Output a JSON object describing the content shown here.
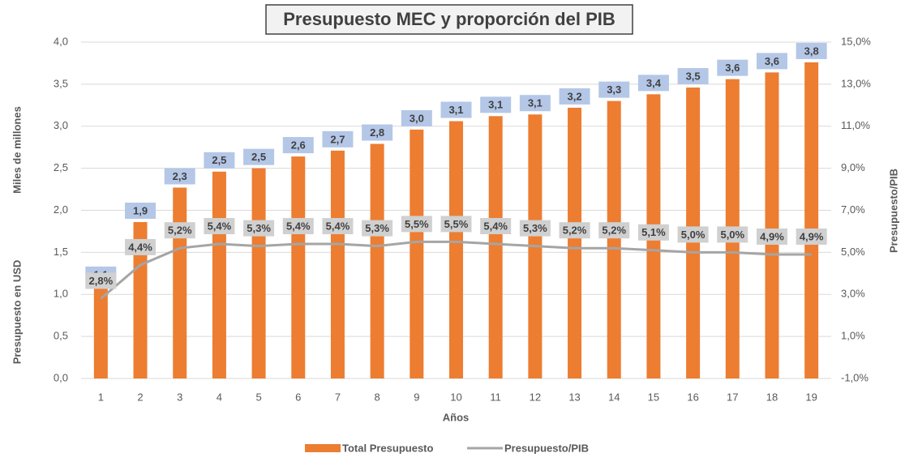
{
  "chart_data": {
    "type": "bar_line",
    "title": "Presupuesto MEC y proporción del PIB",
    "y_label_lines": [
      "Miles de millones",
      "Presupuesto en USD"
    ],
    "y2_label": "Presupuesto/PIB",
    "x_label": "Años",
    "categories": [
      "1",
      "2",
      "3",
      "4",
      "5",
      "6",
      "7",
      "8",
      "9",
      "10",
      "11",
      "12",
      "13",
      "14",
      "15",
      "16",
      "17",
      "18",
      "19"
    ],
    "series": [
      {
        "name": "Total Presupuesto",
        "type": "bar",
        "color": "#ed7d31",
        "values": [
          1.1,
          1.86,
          2.27,
          2.46,
          2.5,
          2.64,
          2.71,
          2.79,
          2.96,
          3.06,
          3.12,
          3.14,
          3.22,
          3.3,
          3.38,
          3.46,
          3.56,
          3.64,
          3.76
        ],
        "value_labels": [
          "1,1",
          "1,9",
          "2,3",
          "2,5",
          "2,5",
          "2,6",
          "2,7",
          "2,8",
          "3,0",
          "3,1",
          "3,1",
          "3,1",
          "3,2",
          "3,3",
          "3,4",
          "3,5",
          "3,6",
          "3,6",
          "3,8"
        ]
      },
      {
        "name": "Presupuesto/PIB",
        "type": "line",
        "color": "#a5a5a5",
        "axis": "y2",
        "values": [
          2.8,
          4.4,
          5.2,
          5.4,
          5.3,
          5.4,
          5.4,
          5.3,
          5.5,
          5.5,
          5.4,
          5.3,
          5.2,
          5.2,
          5.1,
          5.0,
          5.0,
          4.9,
          4.9
        ],
        "value_labels": [
          "2,8%",
          "4,4%",
          "5,2%",
          "5,4%",
          "5,3%",
          "5,4%",
          "5,4%",
          "5,3%",
          "5,5%",
          "5,5%",
          "5,4%",
          "5,3%",
          "5,2%",
          "5,2%",
          "5,1%",
          "5,0%",
          "5,0%",
          "4,9%",
          "4,9%"
        ]
      }
    ],
    "ylim": [
      0,
      4
    ],
    "yticks": [
      {
        "value": 0,
        "label": "0,0"
      },
      {
        "value": 0.5,
        "label": "0,5"
      },
      {
        "value": 1,
        "label": "1,0"
      },
      {
        "value": 1.5,
        "label": "1,5"
      },
      {
        "value": 2,
        "label": "2,0"
      },
      {
        "value": 2.5,
        "label": "2,5"
      },
      {
        "value": 3,
        "label": "3,0"
      },
      {
        "value": 3.5,
        "label": "3,5"
      },
      {
        "value": 4,
        "label": "4,0"
      }
    ],
    "y2lim": [
      -1,
      15
    ],
    "y2ticks": [
      {
        "value": -1,
        "label": "-1,0%"
      },
      {
        "value": 1,
        "label": "1,0%"
      },
      {
        "value": 3,
        "label": "3,0%"
      },
      {
        "value": 5,
        "label": "5,0%"
      },
      {
        "value": 7,
        "label": "7,0%"
      },
      {
        "value": 9,
        "label": "9,0%"
      },
      {
        "value": 11,
        "label": "11,0%"
      },
      {
        "value": 13,
        "label": "13,0%"
      },
      {
        "value": 15,
        "label": "15,0%"
      }
    ],
    "grid": true,
    "legend": "bottom"
  }
}
